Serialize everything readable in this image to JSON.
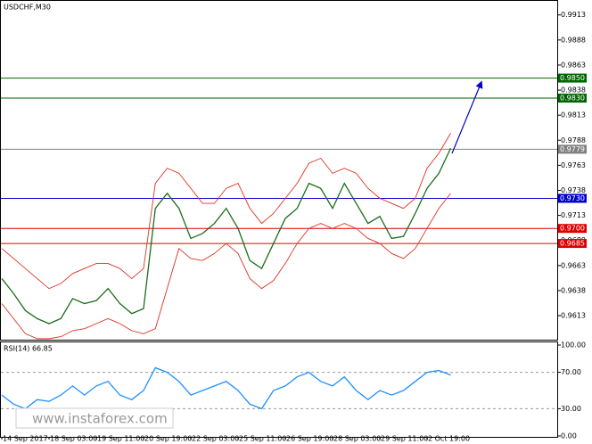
{
  "chart_data": [
    {
      "type": "line",
      "title": "USDCHF,M30",
      "categories": [
        "14 Sep 2017",
        null,
        null,
        null,
        "18 Sep 03:00",
        null,
        null,
        null,
        "19 Sep 11:00",
        null,
        null,
        null,
        "20 Sep 19:00",
        null,
        null,
        null,
        "22 Sep 03:00",
        null,
        null,
        null,
        "25 Sep 11:00",
        null,
        null,
        null,
        "26 Sep 19:00",
        null,
        null,
        null,
        "28 Sep 03:00",
        null,
        null,
        null,
        "29 Sep 11:00",
        null,
        null,
        null,
        "2 Oct 19:00",
        null,
        null
      ],
      "series": [
        {
          "color": "#1a6e1a",
          "values": [
            0.965,
            0.9635,
            0.9618,
            0.961,
            0.9605,
            0.961,
            0.963,
            0.9625,
            0.9628,
            0.964,
            0.9625,
            0.9615,
            0.962,
            0.972,
            0.9735,
            0.972,
            0.969,
            0.9695,
            0.9705,
            0.972,
            0.97,
            0.9668,
            0.966,
            0.9685,
            0.971,
            0.972,
            0.9745,
            0.974,
            0.972,
            0.9745,
            0.9725,
            0.9705,
            0.9712,
            0.969,
            0.9692,
            0.9715,
            0.974,
            0.9755,
            0.978
          ]
        },
        {
          "color": "#e03020",
          "values": [
            0.968,
            0.967,
            0.966,
            0.965,
            0.964,
            0.9645,
            0.9655,
            0.966,
            0.9665,
            0.9665,
            0.966,
            0.965,
            0.966,
            0.9745,
            0.976,
            0.9755,
            0.974,
            0.9725,
            0.9725,
            0.974,
            0.9745,
            0.972,
            0.9705,
            0.9715,
            0.973,
            0.9745,
            0.9765,
            0.977,
            0.9755,
            0.976,
            0.9755,
            0.974,
            0.973,
            0.9725,
            0.972,
            0.973,
            0.976,
            0.9775,
            0.9795
          ]
        },
        {
          "color": "#e03020",
          "values": [
            0.9625,
            0.961,
            0.9595,
            0.959,
            0.959,
            0.9592,
            0.9598,
            0.96,
            0.9605,
            0.961,
            0.9605,
            0.9598,
            0.9595,
            0.96,
            0.964,
            0.968,
            0.967,
            0.9668,
            0.9675,
            0.9685,
            0.9675,
            0.965,
            0.964,
            0.9648,
            0.9665,
            0.9685,
            0.97,
            0.9705,
            0.97,
            0.9705,
            0.97,
            0.969,
            0.9685,
            0.9675,
            0.967,
            0.968,
            0.97,
            0.972,
            0.9735
          ]
        }
      ],
      "ylim": [
        0.9589,
        0.9927
      ],
      "yticks": [
        0.9913,
        0.9888,
        0.9863,
        {
          "value": 0.9838,
          "label": "0.9838"
        },
        0.9813,
        0.9788,
        0.9763,
        0.9738,
        0.9713,
        0.9688,
        0.9663,
        0.9638,
        0.9613
      ],
      "levels": [
        {
          "value": 0.985,
          "label": "0.9850",
          "color": "#006400"
        },
        {
          "value": 0.983,
          "label": "0.9830",
          "color": "#006400"
        },
        {
          "value": 0.9779,
          "label": "0.9779",
          "color": "#808080"
        },
        {
          "value": 0.973,
          "label": "0.9730",
          "color": "#0000cc"
        },
        {
          "value": 0.97,
          "label": "0.9700",
          "color": "#dd0000"
        },
        {
          "value": 0.9685,
          "label": "0.9685",
          "color": "#dd0000"
        }
      ]
    },
    {
      "type": "line",
      "title": "RSI(14) 66.85",
      "series": [
        {
          "color": "#1e90ff",
          "values": [
            45,
            35,
            30,
            40,
            38,
            45,
            55,
            45,
            55,
            60,
            45,
            40,
            50,
            75,
            70,
            60,
            45,
            50,
            55,
            60,
            50,
            35,
            30,
            50,
            55,
            65,
            70,
            60,
            55,
            65,
            50,
            40,
            50,
            45,
            50,
            60,
            70,
            72,
            67
          ]
        }
      ],
      "ylim": [
        0,
        100
      ],
      "yticks": [
        {
          "value": 100,
          "label": "100.00"
        },
        {
          "value": 70,
          "label": "70.00"
        },
        {
          "value": 30,
          "label": "30.00"
        },
        {
          "value": 0,
          "label": "0.00"
        }
      ],
      "annotation": "www.instaforex.com"
    }
  ]
}
